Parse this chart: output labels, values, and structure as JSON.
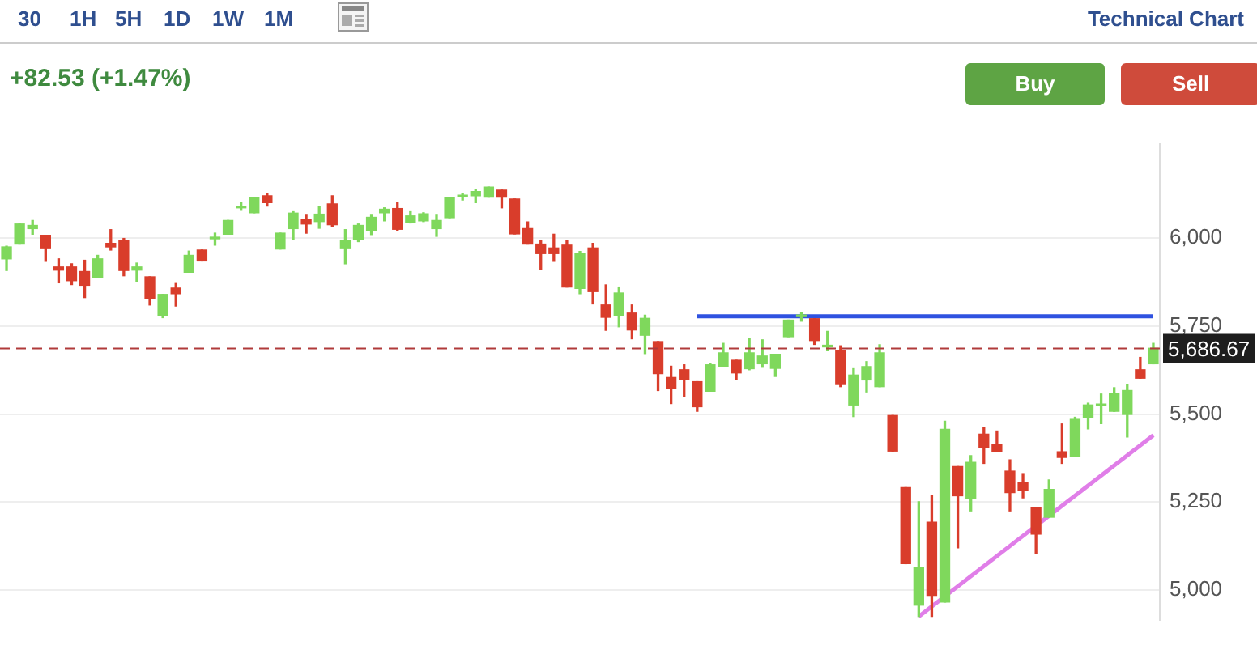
{
  "chart_data": {
    "type": "candlestick",
    "title": "Technical Chart",
    "subtitle": "+82.53 (+1.47%)",
    "annotations": [
      "30",
      "1H",
      "5H",
      "1D",
      "1W",
      "1M",
      "Buy",
      "Sell"
    ],
    "categories": [
      null,
      null,
      null,
      null,
      null,
      null,
      null,
      null,
      null,
      null,
      null,
      null,
      null,
      null,
      null,
      null,
      null,
      null,
      null,
      null,
      null,
      null,
      null,
      null,
      null,
      null,
      null,
      null,
      null,
      null,
      null,
      null,
      null,
      null,
      null,
      null,
      null,
      null,
      null,
      null,
      null,
      null,
      null,
      null,
      null,
      null,
      null,
      null,
      null,
      null,
      null,
      null,
      null,
      null,
      null,
      null,
      null,
      null,
      null,
      null,
      null,
      null,
      null,
      null,
      null,
      null,
      null,
      null,
      null,
      null,
      null,
      null,
      null,
      null,
      null,
      null,
      null,
      null,
      null,
      null,
      null,
      null,
      null,
      null,
      null,
      null,
      null,
      null,
      null
    ],
    "ohlc": [
      [
        5941,
        5977,
        5908,
        5975
      ],
      [
        5983,
        6040,
        5983,
        6040
      ],
      [
        6027,
        6050,
        6011,
        6036
      ],
      [
        6008,
        6008,
        5934,
        5970
      ],
      [
        5918,
        5941,
        5873,
        5909
      ],
      [
        5918,
        5927,
        5868,
        5879
      ],
      [
        5905,
        5937,
        5831,
        5866
      ],
      [
        5889,
        5951,
        5889,
        5941
      ],
      [
        5985,
        6024,
        5966,
        5975
      ],
      [
        5993,
        5999,
        5893,
        5908
      ],
      [
        5909,
        5929,
        5877,
        5918
      ],
      [
        5890,
        5890,
        5810,
        5828
      ],
      [
        5779,
        5840,
        5774,
        5840
      ],
      [
        5858,
        5871,
        5807,
        5842
      ],
      [
        5903,
        5963,
        5903,
        5951
      ],
      [
        5966,
        5966,
        5935,
        5935
      ],
      [
        5998,
        6014,
        5980,
        5998
      ],
      [
        6011,
        6050,
        6011,
        6050
      ],
      [
        6086,
        6101,
        6079,
        6086
      ],
      [
        6072,
        6116,
        6072,
        6116
      ],
      [
        6120,
        6127,
        6091,
        6101
      ],
      [
        5969,
        6014,
        5969,
        6014
      ],
      [
        6027,
        6075,
        5995,
        6071
      ],
      [
        6053,
        6065,
        6014,
        6040
      ],
      [
        6047,
        6089,
        6028,
        6068
      ],
      [
        6097,
        6120,
        6034,
        6038
      ],
      [
        5970,
        6024,
        5927,
        5992
      ],
      [
        5997,
        6040,
        5990,
        6036
      ],
      [
        6021,
        6065,
        6010,
        6059
      ],
      [
        6072,
        6086,
        6049,
        6082
      ],
      [
        6084,
        6101,
        6021,
        6025
      ],
      [
        6044,
        6075,
        6043,
        6063
      ],
      [
        6049,
        6072,
        6047,
        6069
      ],
      [
        6027,
        6065,
        6005,
        6050
      ],
      [
        6058,
        6116,
        6058,
        6116
      ],
      [
        6117,
        6126,
        6108,
        6117
      ],
      [
        6120,
        6137,
        6101,
        6132
      ],
      [
        6116,
        6145,
        6116,
        6145
      ],
      [
        6136,
        6136,
        6086,
        6116
      ],
      [
        6111,
        6111,
        6012,
        6012
      ],
      [
        6027,
        6046,
        5983,
        5983
      ],
      [
        5983,
        5992,
        5912,
        5956
      ],
      [
        5972,
        6011,
        5934,
        5956
      ],
      [
        5980,
        5992,
        5861,
        5861
      ],
      [
        5857,
        5962,
        5842,
        5957
      ],
      [
        5972,
        5985,
        5813,
        5848
      ],
      [
        5810,
        5867,
        5738,
        5775
      ],
      [
        5781,
        5861,
        5748,
        5844
      ],
      [
        5787,
        5810,
        5714,
        5739
      ],
      [
        5724,
        5781,
        5672,
        5772
      ],
      [
        5706,
        5706,
        5567,
        5615
      ],
      [
        5604,
        5636,
        5530,
        5574
      ],
      [
        5626,
        5640,
        5549,
        5598
      ],
      [
        5592,
        5592,
        5508,
        5521
      ],
      [
        5565,
        5643,
        5565,
        5640
      ],
      [
        5635,
        5701,
        5635,
        5674
      ],
      [
        5653,
        5653,
        5598,
        5617
      ],
      [
        5629,
        5716,
        5626,
        5674
      ],
      [
        5643,
        5711,
        5633,
        5665
      ],
      [
        5630,
        5670,
        5607,
        5670
      ],
      [
        5720,
        5767,
        5720,
        5767
      ],
      [
        5777,
        5789,
        5764,
        5777
      ],
      [
        5771,
        5771,
        5698,
        5709
      ],
      [
        5691,
        5735,
        5680,
        5691
      ],
      [
        5680,
        5694,
        5578,
        5584
      ],
      [
        5526,
        5629,
        5493,
        5611
      ],
      [
        5597,
        5649,
        5563,
        5635
      ],
      [
        5578,
        5697,
        5578,
        5674
      ],
      [
        5496,
        5496,
        5395,
        5395
      ],
      [
        5291,
        5291,
        5075,
        5075
      ],
      [
        4957,
        5251,
        4925,
        5065
      ],
      [
        5193,
        5268,
        4925,
        4985
      ],
      [
        4966,
        5480,
        4966,
        5457
      ],
      [
        5351,
        5351,
        5120,
        5268
      ],
      [
        5261,
        5382,
        5225,
        5363
      ],
      [
        5443,
        5462,
        5360,
        5404
      ],
      [
        5414,
        5452,
        5393,
        5393
      ],
      [
        5338,
        5370,
        5225,
        5277
      ],
      [
        5306,
        5331,
        5262,
        5283
      ],
      [
        5235,
        5235,
        5105,
        5159
      ],
      [
        5207,
        5313,
        5207,
        5286
      ],
      [
        5393,
        5472,
        5360,
        5377
      ],
      [
        5380,
        5491,
        5380,
        5485
      ],
      [
        5491,
        5531,
        5458,
        5526
      ],
      [
        5524,
        5557,
        5473,
        5524
      ],
      [
        5508,
        5575,
        5508,
        5559
      ],
      [
        5499,
        5584,
        5435,
        5567
      ],
      [
        5626,
        5661,
        5602,
        5602
      ],
      [
        5643,
        5701,
        5643,
        5687
      ]
    ],
    "colors": [
      "#7fd85c",
      "#7fd85c",
      "#7fd85c",
      "#d93d2b",
      "#d93d2b",
      "#d93d2b",
      "#d93d2b",
      "#7fd85c",
      "#d93d2b",
      "#d93d2b",
      "#7fd85c",
      "#d93d2b",
      "#7fd85c",
      "#d93d2b",
      "#7fd85c",
      "#d93d2b",
      "#7fd85c",
      "#7fd85c",
      "#7fd85c",
      "#7fd85c",
      "#d93d2b",
      "#7fd85c",
      "#7fd85c",
      "#d93d2b",
      "#7fd85c",
      "#d93d2b",
      "#7fd85c",
      "#7fd85c",
      "#7fd85c",
      "#7fd85c",
      "#d93d2b",
      "#7fd85c",
      "#7fd85c",
      "#7fd85c",
      "#7fd85c",
      "#7fd85c",
      "#7fd85c",
      "#7fd85c",
      "#d93d2b",
      "#d93d2b",
      "#d93d2b",
      "#d93d2b",
      "#d93d2b",
      "#d93d2b",
      "#7fd85c",
      "#d93d2b",
      "#d93d2b",
      "#7fd85c",
      "#d93d2b",
      "#7fd85c",
      "#d93d2b",
      "#d93d2b",
      "#d93d2b",
      "#d93d2b",
      "#7fd85c",
      "#7fd85c",
      "#d93d2b",
      "#7fd85c",
      "#7fd85c",
      "#7fd85c",
      "#7fd85c",
      "#7fd85c",
      "#d93d2b",
      "#7fd85c",
      "#d93d2b",
      "#7fd85c",
      "#7fd85c",
      "#7fd85c",
      "#d93d2b",
      "#d93d2b",
      "#7fd85c",
      "#d93d2b",
      "#7fd85c",
      "#d93d2b",
      "#7fd85c",
      "#d93d2b",
      "#d93d2b",
      "#d93d2b",
      "#d93d2b",
      "#d93d2b",
      "#7fd85c",
      "#d93d2b",
      "#7fd85c",
      "#7fd85c",
      "#7fd85c",
      "#7fd85c",
      "#7fd85c",
      "#d93d2b",
      "#7fd85c"
    ],
    "series": [
      {
        "type": "line",
        "color": "#2f52e0",
        "values": [
          null,
          null,
          null,
          null,
          null,
          null,
          null,
          null,
          null,
          null,
          null,
          null,
          null,
          null,
          null,
          null,
          null,
          null,
          null,
          null,
          null,
          null,
          null,
          null,
          null,
          null,
          null,
          null,
          null,
          null,
          null,
          null,
          null,
          null,
          null,
          null,
          null,
          null,
          null,
          null,
          null,
          null,
          null,
          null,
          null,
          null,
          null,
          null,
          null,
          null,
          null,
          null,
          null,
          5778,
          null,
          null,
          null,
          null,
          null,
          null,
          null,
          null,
          null,
          null,
          null,
          null,
          null,
          null,
          null,
          null,
          null,
          null,
          null,
          null,
          null,
          null,
          null,
          null,
          null,
          null,
          null,
          null,
          null,
          null,
          null,
          null,
          null,
          null,
          5778
        ]
      },
      {
        "type": "line",
        "color": "#e07ee8",
        "values": [
          null,
          null,
          null,
          null,
          null,
          null,
          null,
          null,
          null,
          null,
          null,
          null,
          null,
          null,
          null,
          null,
          null,
          null,
          null,
          null,
          null,
          null,
          null,
          null,
          null,
          null,
          null,
          null,
          null,
          null,
          null,
          null,
          null,
          null,
          null,
          null,
          null,
          null,
          null,
          null,
          null,
          null,
          null,
          null,
          null,
          null,
          null,
          null,
          null,
          null,
          null,
          null,
          null,
          null,
          null,
          null,
          null,
          null,
          null,
          null,
          null,
          null,
          null,
          null,
          null,
          null,
          null,
          null,
          null,
          null,
          4925,
          null,
          null,
          null,
          null,
          null,
          null,
          null,
          null,
          null,
          null,
          null,
          null,
          null,
          null,
          null,
          null,
          null,
          5440
        ]
      }
    ],
    "ref_lines": [
      {
        "axis": "y",
        "value": 5686.67,
        "label": "5,686.67",
        "color": "#b03a3a",
        "line_style": "dashed"
      }
    ],
    "ylim": [
      4915,
      6268
    ],
    "yticks": [
      {
        "value": 5000,
        "label": "5,000"
      },
      {
        "value": 5250,
        "label": "5,250"
      },
      {
        "value": 5500,
        "label": "5,500"
      },
      {
        "value": 5750,
        "label": "5,750"
      },
      {
        "value": 6000,
        "label": "6,000"
      }
    ],
    "grid": "y",
    "tick_labels": "y"
  }
}
